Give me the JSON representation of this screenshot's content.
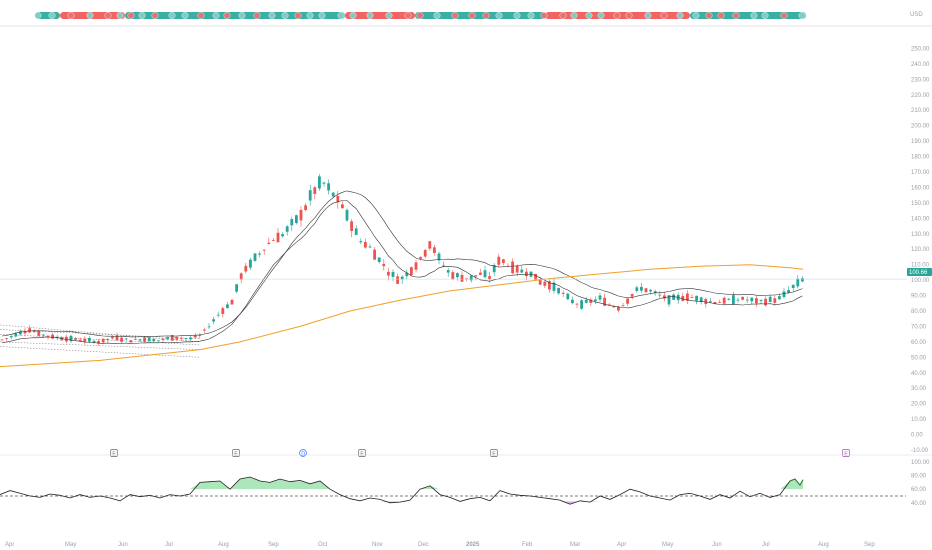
{
  "chart_data": [
    {
      "type": "candlestick",
      "title": "",
      "ylim": [
        -10,
        260
      ],
      "y_ticks": [
        -10,
        0,
        10,
        20,
        30,
        40,
        50,
        60,
        70,
        80,
        90,
        100,
        110,
        120,
        130,
        140,
        150,
        160,
        170,
        180,
        190,
        200,
        210,
        220,
        230,
        240,
        250
      ],
      "x_labels": [
        "Apr",
        "May",
        "Jun",
        "Jul",
        "Aug",
        "Sep",
        "Oct",
        "Nov",
        "Dec",
        "2025",
        "Feb",
        "Mar",
        "Apr",
        "May",
        "Jun",
        "Jul",
        "Aug",
        "Sep"
      ],
      "last_price": 100.66,
      "last_price_label": "100.66",
      "currency_label": "USD",
      "close_trend": [
        [
          0,
          61
        ],
        [
          10,
          63
        ],
        [
          20,
          66
        ],
        [
          30,
          68
        ],
        [
          40,
          65
        ],
        [
          55,
          63
        ],
        [
          70,
          62
        ],
        [
          85,
          61
        ],
        [
          100,
          60
        ],
        [
          115,
          63
        ],
        [
          130,
          61
        ],
        [
          145,
          62
        ],
        [
          160,
          61
        ],
        [
          175,
          63
        ],
        [
          190,
          62
        ],
        [
          200,
          64
        ],
        [
          210,
          71
        ],
        [
          220,
          79
        ],
        [
          232,
          86
        ],
        [
          242,
          104
        ],
        [
          252,
          112
        ],
        [
          262,
          119
        ],
        [
          272,
          126
        ],
        [
          282,
          129
        ],
        [
          292,
          136
        ],
        [
          302,
          143
        ],
        [
          312,
          156
        ],
        [
          322,
          164
        ],
        [
          330,
          158
        ],
        [
          340,
          150
        ],
        [
          350,
          138
        ],
        [
          360,
          126
        ],
        [
          370,
          121
        ],
        [
          380,
          113
        ],
        [
          390,
          104
        ],
        [
          400,
          100
        ],
        [
          410,
          106
        ],
        [
          420,
          113
        ],
        [
          430,
          124
        ],
        [
          440,
          113
        ],
        [
          450,
          104
        ],
        [
          460,
          102
        ],
        [
          470,
          101
        ],
        [
          480,
          104
        ],
        [
          490,
          102
        ],
        [
          500,
          114
        ],
        [
          510,
          109
        ],
        [
          520,
          106
        ],
        [
          530,
          105
        ],
        [
          540,
          99
        ],
        [
          550,
          97
        ],
        [
          560,
          93
        ],
        [
          570,
          87
        ],
        [
          580,
          84
        ],
        [
          590,
          86
        ],
        [
          600,
          88
        ],
        [
          610,
          84
        ],
        [
          620,
          82
        ],
        [
          630,
          89
        ],
        [
          640,
          95
        ],
        [
          650,
          93
        ],
        [
          660,
          90
        ],
        [
          670,
          87
        ],
        [
          680,
          89
        ],
        [
          690,
          89
        ],
        [
          700,
          88
        ],
        [
          710,
          86
        ],
        [
          720,
          86
        ],
        [
          730,
          87
        ],
        [
          740,
          88
        ],
        [
          750,
          87
        ],
        [
          760,
          86
        ],
        [
          770,
          87
        ],
        [
          780,
          88
        ],
        [
          790,
          94
        ],
        [
          796,
          97
        ],
        [
          803,
          100.7
        ]
      ],
      "series": [
        {
          "type": "line",
          "color": "#f0a02c",
          "x_anchor": [
            0,
            100,
            200,
            240,
            300,
            350,
            400,
            450,
            500,
            550,
            600,
            650,
            700,
            750,
            790,
            803
          ],
          "values": [
            44,
            48,
            55,
            60,
            70,
            80,
            87,
            93,
            97,
            101,
            104,
            107,
            109,
            110,
            108,
            107
          ]
        }
      ],
      "event_markers": [
        {
          "label": "E",
          "x": 114
        },
        {
          "label": "E",
          "x": 236
        },
        {
          "label": "D",
          "x": 303
        },
        {
          "label": "E",
          "x": 362
        },
        {
          "label": "E",
          "x": 494
        },
        {
          "label": "E",
          "x": 846
        }
      ],
      "colors": {
        "up": "#26a69a",
        "down": "#ef5350",
        "ma": "#333333",
        "ma200": "#f0a02c"
      }
    },
    {
      "type": "line",
      "title": "",
      "ylim": [
        0,
        100
      ],
      "y_ticks": [
        40,
        60,
        80,
        100
      ],
      "reference_line": 50,
      "values": [
        [
          0,
          52
        ],
        [
          10,
          58
        ],
        [
          20,
          54
        ],
        [
          30,
          50
        ],
        [
          40,
          48
        ],
        [
          50,
          53
        ],
        [
          60,
          51
        ],
        [
          70,
          47
        ],
        [
          80,
          52
        ],
        [
          90,
          48
        ],
        [
          100,
          50
        ],
        [
          110,
          47
        ],
        [
          120,
          43
        ],
        [
          130,
          52
        ],
        [
          140,
          49
        ],
        [
          150,
          51
        ],
        [
          160,
          47
        ],
        [
          170,
          52
        ],
        [
          180,
          50
        ],
        [
          190,
          53
        ],
        [
          200,
          70
        ],
        [
          210,
          71
        ],
        [
          220,
          72
        ],
        [
          230,
          60
        ],
        [
          240,
          75
        ],
        [
          250,
          78
        ],
        [
          260,
          72
        ],
        [
          270,
          70
        ],
        [
          280,
          75
        ],
        [
          290,
          71
        ],
        [
          300,
          73
        ],
        [
          310,
          68
        ],
        [
          320,
          72
        ],
        [
          330,
          60
        ],
        [
          340,
          52
        ],
        [
          350,
          46
        ],
        [
          360,
          43
        ],
        [
          370,
          47
        ],
        [
          380,
          45
        ],
        [
          390,
          40
        ],
        [
          400,
          41
        ],
        [
          410,
          44
        ],
        [
          420,
          60
        ],
        [
          430,
          65
        ],
        [
          440,
          52
        ],
        [
          450,
          48
        ],
        [
          460,
          42
        ],
        [
          470,
          46
        ],
        [
          480,
          48
        ],
        [
          490,
          43
        ],
        [
          500,
          58
        ],
        [
          510,
          53
        ],
        [
          520,
          51
        ],
        [
          530,
          50
        ],
        [
          540,
          48
        ],
        [
          550,
          46
        ],
        [
          560,
          44
        ],
        [
          570,
          38
        ],
        [
          580,
          43
        ],
        [
          590,
          41
        ],
        [
          600,
          50
        ],
        [
          610,
          45
        ],
        [
          620,
          52
        ],
        [
          630,
          60
        ],
        [
          640,
          56
        ],
        [
          650,
          50
        ],
        [
          660,
          47
        ],
        [
          670,
          44
        ],
        [
          680,
          52
        ],
        [
          690,
          54
        ],
        [
          700,
          50
        ],
        [
          710,
          45
        ],
        [
          720,
          52
        ],
        [
          730,
          47
        ],
        [
          740,
          57
        ],
        [
          750,
          49
        ],
        [
          760,
          54
        ],
        [
          770,
          48
        ],
        [
          780,
          52
        ],
        [
          790,
          72
        ],
        [
          795,
          75
        ],
        [
          800,
          66
        ],
        [
          803,
          74
        ]
      ],
      "fill_colors": {
        "above": "#a5e3b4",
        "below": "#d9a2e8"
      }
    }
  ]
}
